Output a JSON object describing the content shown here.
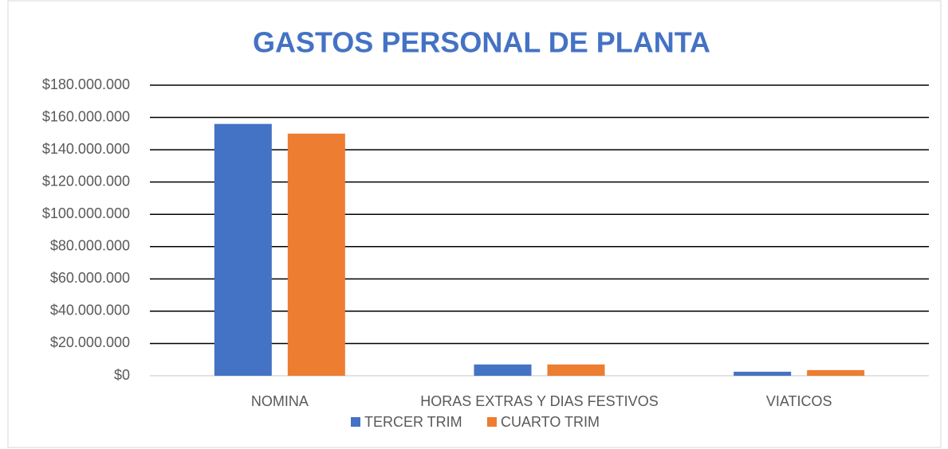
{
  "chart_data": {
    "type": "bar",
    "title": "GASTOS PERSONAL DE PLANTA",
    "categories": [
      "NOMINA",
      "HORAS EXTRAS Y DIAS FESTIVOS",
      "VIATICOS"
    ],
    "series": [
      {
        "name": "TERCER TRIM",
        "color": "#4472c4",
        "values": [
          156000000,
          7000000,
          2500000
        ]
      },
      {
        "name": "CUARTO TRIM",
        "color": "#ed7d31",
        "values": [
          150000000,
          7000000,
          3500000
        ]
      }
    ],
    "ylim": [
      0,
      180000000
    ],
    "yticks": [
      {
        "value": 0,
        "label": "$0"
      },
      {
        "value": 20000000,
        "label": "$20.000.000"
      },
      {
        "value": 40000000,
        "label": "$40.000.000"
      },
      {
        "value": 60000000,
        "label": "$60.000.000"
      },
      {
        "value": 80000000,
        "label": "$80.000.000"
      },
      {
        "value": 100000000,
        "label": "$100.000.000"
      },
      {
        "value": 120000000,
        "label": "$120.000.000"
      },
      {
        "value": 140000000,
        "label": "$140.000.000"
      },
      {
        "value": 160000000,
        "label": "$160.000.000"
      },
      {
        "value": 180000000,
        "label": "$180.000.000"
      }
    ],
    "grid": true,
    "legend": "bottom"
  }
}
